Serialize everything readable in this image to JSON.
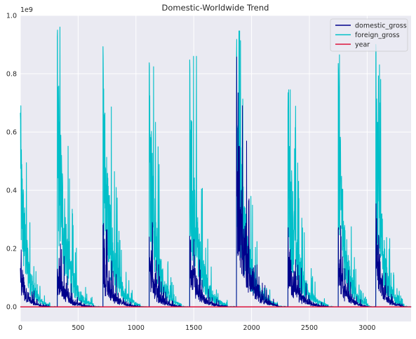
{
  "chart_data": {
    "type": "line",
    "title": "Domestic-Worldwide Trend",
    "xlabel": "",
    "ylabel": "",
    "y_offset_label": "1e9",
    "xlim": [
      0,
      3380
    ],
    "ylim": [
      -0.05,
      1.0
    ],
    "x_ticks": [
      0,
      500,
      1000,
      1500,
      2000,
      2500,
      3000
    ],
    "y_ticks": [
      0.0,
      0.2,
      0.4,
      0.6,
      0.8,
      1.0
    ],
    "y_tick_labels": [
      "0.0",
      "0.2",
      "0.4",
      "0.6",
      "0.8",
      "1.0"
    ],
    "grid": true,
    "legend_position": "top-right",
    "background_color": "#EAEAF2",
    "grid_color": "#FFFFFF",
    "cycles": [
      {
        "start": 0,
        "end": 320,
        "foreign_peak": 0.69,
        "domestic_peak": 0.2
      },
      {
        "start": 320,
        "end": 715,
        "foreign_peak": 0.96,
        "domestic_peak": 0.23
      },
      {
        "start": 715,
        "end": 1115,
        "foreign_peak": 0.895,
        "domestic_peak": 0.29
      },
      {
        "start": 1115,
        "end": 1465,
        "foreign_peak": 0.875,
        "domestic_peak": 0.3
      },
      {
        "start": 1465,
        "end": 1870,
        "foreign_peak": 0.86,
        "domestic_peak": 0.31
      },
      {
        "start": 1870,
        "end": 2315,
        "foreign_peak": 0.947,
        "domestic_peak": 0.94
      },
      {
        "start": 2315,
        "end": 2750,
        "foreign_peak": 0.745,
        "domestic_peak": 0.29
      },
      {
        "start": 2750,
        "end": 3075,
        "foreign_peak": 0.865,
        "domestic_peak": 0.35
      },
      {
        "start": 3075,
        "end": 3380,
        "foreign_peak": 0.905,
        "domestic_peak": 0.41
      }
    ],
    "series": [
      {
        "name": "domestic_gross",
        "color": "#00008B"
      },
      {
        "name": "foreign_gross",
        "color": "#00BFC8"
      },
      {
        "name": "year",
        "color": "#DC143C",
        "constant_value": 0.0
      }
    ]
  }
}
